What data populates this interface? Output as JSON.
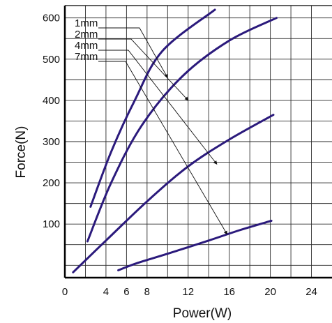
{
  "chart_data": {
    "type": "line",
    "xlabel": "Power(W)",
    "ylabel": "Force(N)",
    "xlim": [
      0,
      26
    ],
    "ylim": [
      -30,
      630
    ],
    "x_ticks": [
      {
        "label": "0",
        "v": 0
      },
      {
        "label": "4",
        "v": 4
      },
      {
        "label": "6",
        "v": 6
      },
      {
        "label": "8",
        "v": 8
      },
      {
        "label": "12",
        "v": 12
      },
      {
        "label": "16",
        "v": 16
      },
      {
        "label": "20",
        "v": 20
      },
      {
        "label": "24",
        "v": 24
      }
    ],
    "y_ticks": [
      {
        "label": "600",
        "v": 600
      },
      {
        "label": "500",
        "v": 500
      },
      {
        "label": "400",
        "v": 400
      },
      {
        "label": "300",
        "v": 300
      },
      {
        "label": "200",
        "v": 200
      },
      {
        "label": "100",
        "v": 100
      }
    ],
    "grid": true,
    "line_color": "#2b1a7c",
    "series": [
      {
        "name": "1mm",
        "points": [
          [
            2.5,
            142
          ],
          [
            4.5,
            275
          ],
          [
            6.8,
            400
          ],
          [
            9.5,
            520
          ],
          [
            14.6,
            620
          ]
        ]
      },
      {
        "name": "2mm",
        "points": [
          [
            2.2,
            58
          ],
          [
            4.5,
            200
          ],
          [
            7.5,
            340
          ],
          [
            11.5,
            460
          ],
          [
            16,
            545
          ],
          [
            20.6,
            600
          ]
        ]
      },
      {
        "name": "4mm",
        "points": [
          [
            0.8,
            -17
          ],
          [
            4,
            60
          ],
          [
            8,
            155
          ],
          [
            12,
            240
          ],
          [
            16,
            305
          ],
          [
            20.3,
            365
          ]
        ]
      },
      {
        "name": "7mm",
        "points": [
          [
            5.2,
            -12
          ],
          [
            7,
            5
          ],
          [
            10,
            28
          ],
          [
            14,
            60
          ],
          [
            17,
            85
          ],
          [
            20.1,
            108
          ]
        ]
      }
    ],
    "legend": [
      {
        "label": "1mm",
        "target": [
          10,
          455
        ]
      },
      {
        "label": "2mm",
        "target": [
          12,
          400
        ]
      },
      {
        "label": "4mm",
        "target": [
          14.8,
          245
        ]
      },
      {
        "label": "7mm",
        "target": [
          15.8,
          75
        ]
      }
    ]
  }
}
